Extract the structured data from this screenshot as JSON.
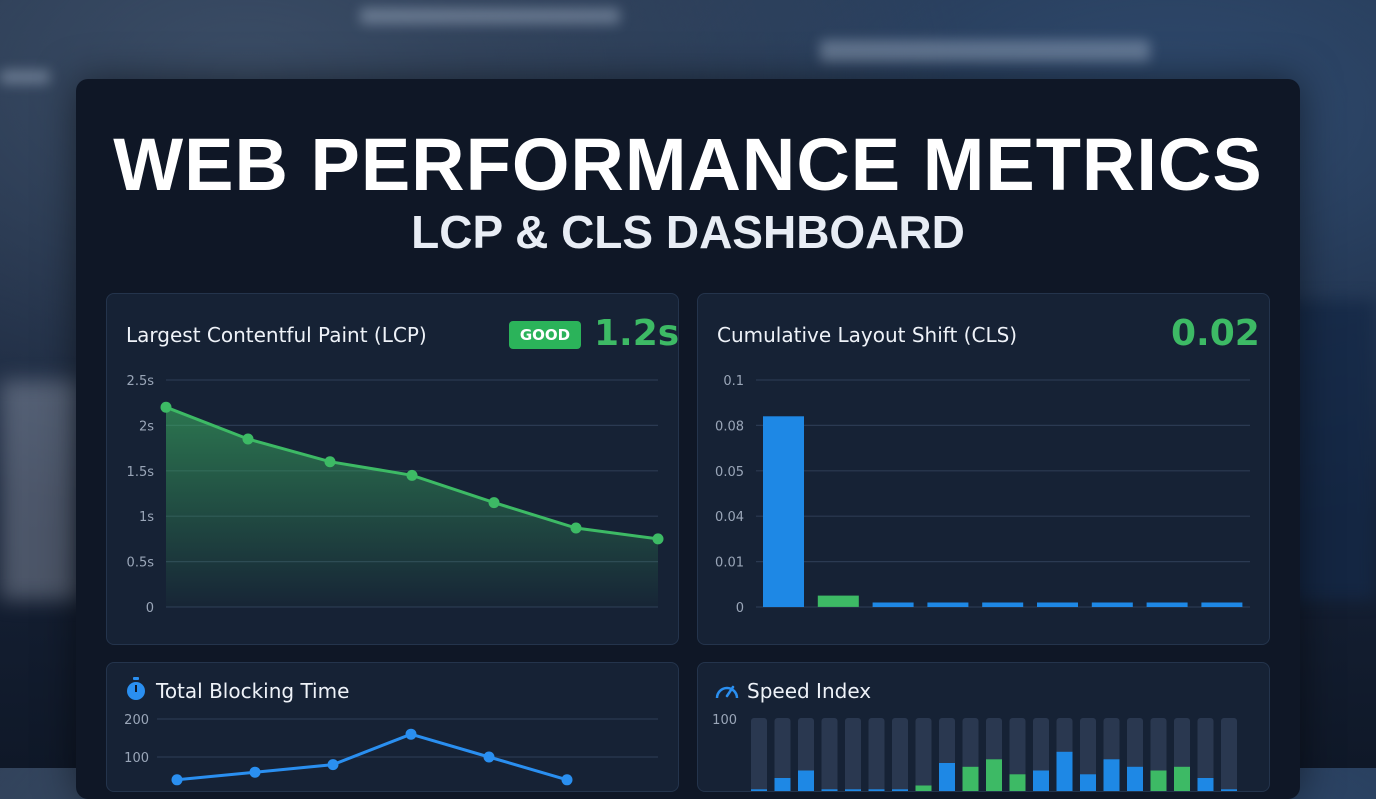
{
  "header": {
    "title": "WEB PERFORMANCE METRICS",
    "subtitle": "LCP & CLS DASHBOARD"
  },
  "lcp": {
    "title": "Largest Contentful Paint (LCP)",
    "badge": "GOOD",
    "value": "1.2s"
  },
  "cls": {
    "title": "Cumulative Layout Shift (CLS)",
    "value": "0.02"
  },
  "tbt": {
    "title": "Total Blocking Time"
  },
  "si": {
    "title": "Speed Index"
  },
  "colors": {
    "green": "#3dba65",
    "blue": "#1e88e5",
    "track": "#2a3850"
  },
  "chart_data": [
    {
      "type": "area",
      "title": "Largest Contentful Paint (LCP)",
      "y_ticks": [
        "2.5s",
        "2s",
        "1.5s",
        "1s",
        "0.5s",
        "0"
      ],
      "ylim": [
        0,
        2.5
      ],
      "values": [
        2.2,
        1.85,
        1.6,
        1.45,
        1.15,
        0.87,
        0.75
      ]
    },
    {
      "type": "bar",
      "title": "Cumulative Layout Shift (CLS)",
      "y_ticks": [
        "0.1",
        "0.08",
        "0.05",
        "0.04",
        "0.01",
        "0"
      ],
      "values": [
        0.084,
        0.005,
        0.002,
        0.002,
        0.002,
        0.002,
        0.002,
        0.002,
        0.002
      ],
      "highlight_index": 1
    },
    {
      "type": "line",
      "title": "Total Blocking Time",
      "y_ticks": [
        "200",
        "100"
      ],
      "ylim": [
        0,
        200
      ],
      "values": [
        40,
        60,
        80,
        160,
        100,
        40
      ]
    },
    {
      "type": "bar",
      "title": "Speed Index",
      "y_ticks": [
        "100"
      ],
      "ylim": [
        0,
        100
      ],
      "values": [
        5,
        20,
        30,
        5,
        5,
        5,
        5,
        10,
        40,
        35,
        45,
        25,
        30,
        55,
        25,
        45,
        35,
        30,
        35,
        20,
        5
      ],
      "colors": [
        "blue",
        "blue",
        "blue",
        "blue",
        "blue",
        "blue",
        "blue",
        "green",
        "blue",
        "green",
        "green",
        "green",
        "blue",
        "blue",
        "blue",
        "blue",
        "blue",
        "green",
        "green",
        "blue",
        "blue"
      ]
    }
  ]
}
